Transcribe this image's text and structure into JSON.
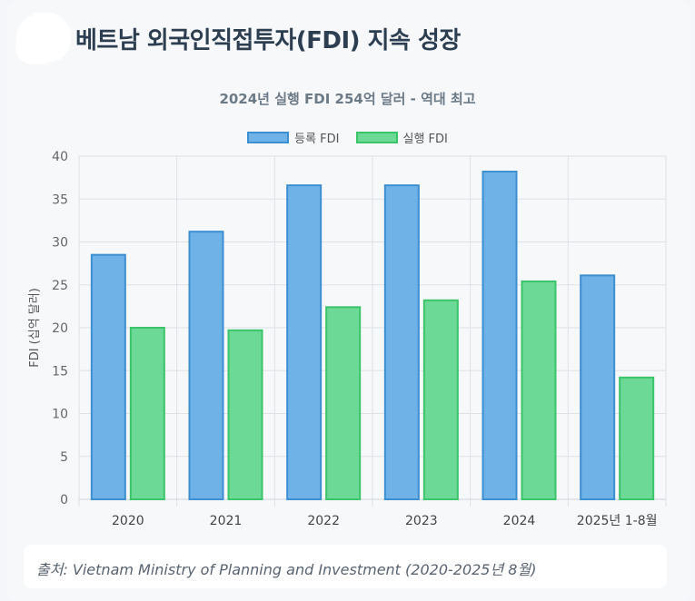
{
  "header": {
    "title": "베트남 외국인직접투자(FDI) 지속 성장"
  },
  "chart_data": {
    "type": "bar",
    "title": "2024년 실행 FDI 254억 달러 - 역대 최고",
    "xlabel": "",
    "ylabel": "FDI (십억 달러)",
    "ylim": [
      0,
      40
    ],
    "yticks": [
      0,
      5,
      10,
      15,
      20,
      25,
      30,
      35,
      40
    ],
    "grid": true,
    "legend_position": "top-center",
    "categories": [
      "2020",
      "2021",
      "2022",
      "2023",
      "2024",
      "2025년 1-8월"
    ],
    "series": [
      {
        "name": "등록 FDI",
        "values": [
          28.5,
          31.2,
          36.6,
          36.6,
          38.2,
          26.1
        ],
        "color": "#3d8fd1",
        "fill": "#6fb2e8"
      },
      {
        "name": "실행 FDI",
        "values": [
          20.0,
          19.7,
          22.4,
          23.2,
          25.4,
          14.2
        ],
        "color": "#3cc46a",
        "fill": "#6cd996"
      }
    ]
  },
  "source": {
    "text": "출처: Vietnam Ministry of Planning and Investment (2020-2025년 8월)"
  }
}
